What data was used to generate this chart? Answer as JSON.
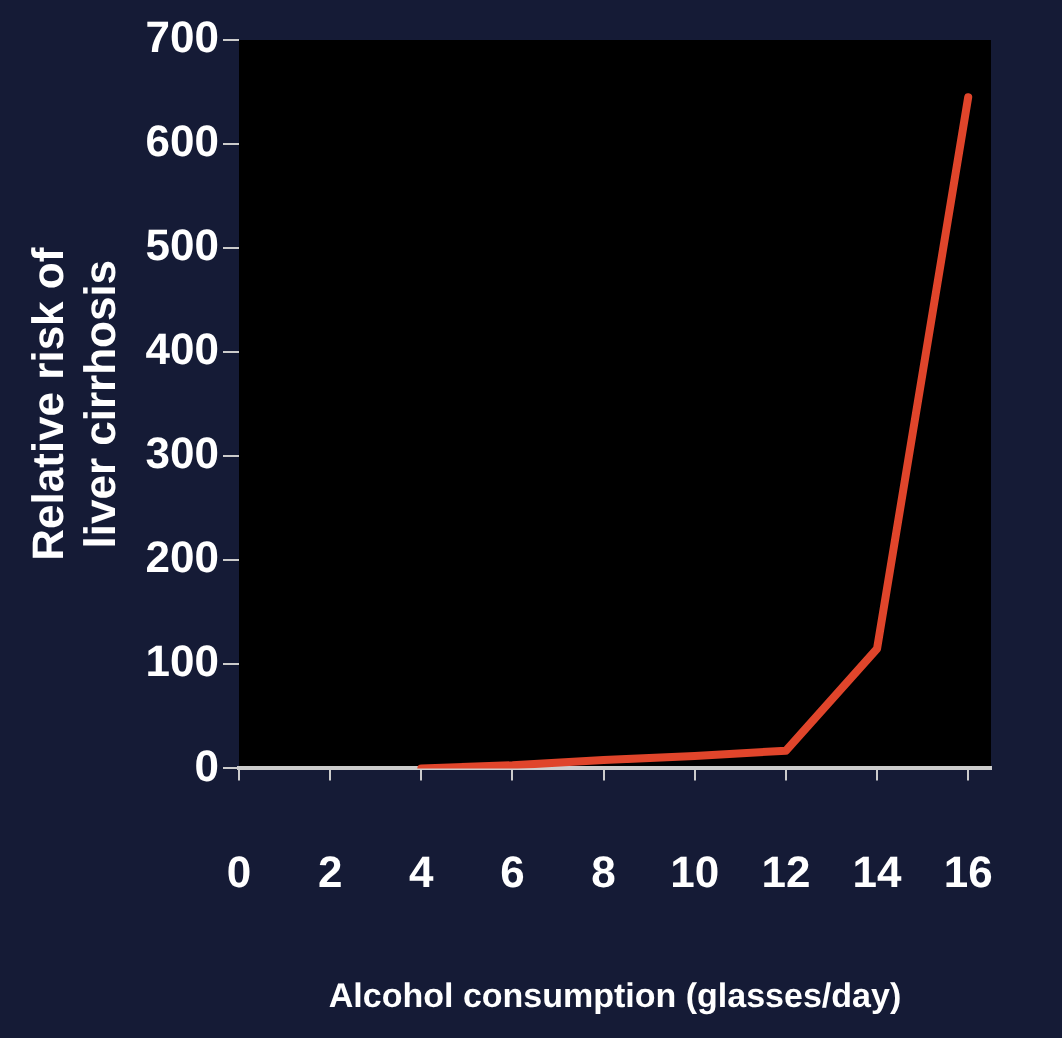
{
  "chart_data": {
    "type": "line",
    "xlabel": "Alcohol consumption (glasses/day)",
    "ylabel": "Relative risk of\nliver cirrhosis",
    "x": [
      4,
      6,
      8,
      10,
      12,
      14,
      16
    ],
    "series": [
      {
        "color": "#e0452b",
        "values": [
          0,
          3,
          8,
          12,
          17,
          115,
          645
        ]
      }
    ],
    "xlim": [
      0,
      16.5
    ],
    "xticks": [
      0,
      2,
      4,
      6,
      8,
      10,
      12,
      14,
      16
    ],
    "ylim": [
      0,
      700
    ],
    "yticks": [
      0,
      100,
      200,
      300,
      400,
      500,
      600,
      700
    ],
    "grid": false,
    "legend": false,
    "marker": "none",
    "line_style": "solid"
  }
}
